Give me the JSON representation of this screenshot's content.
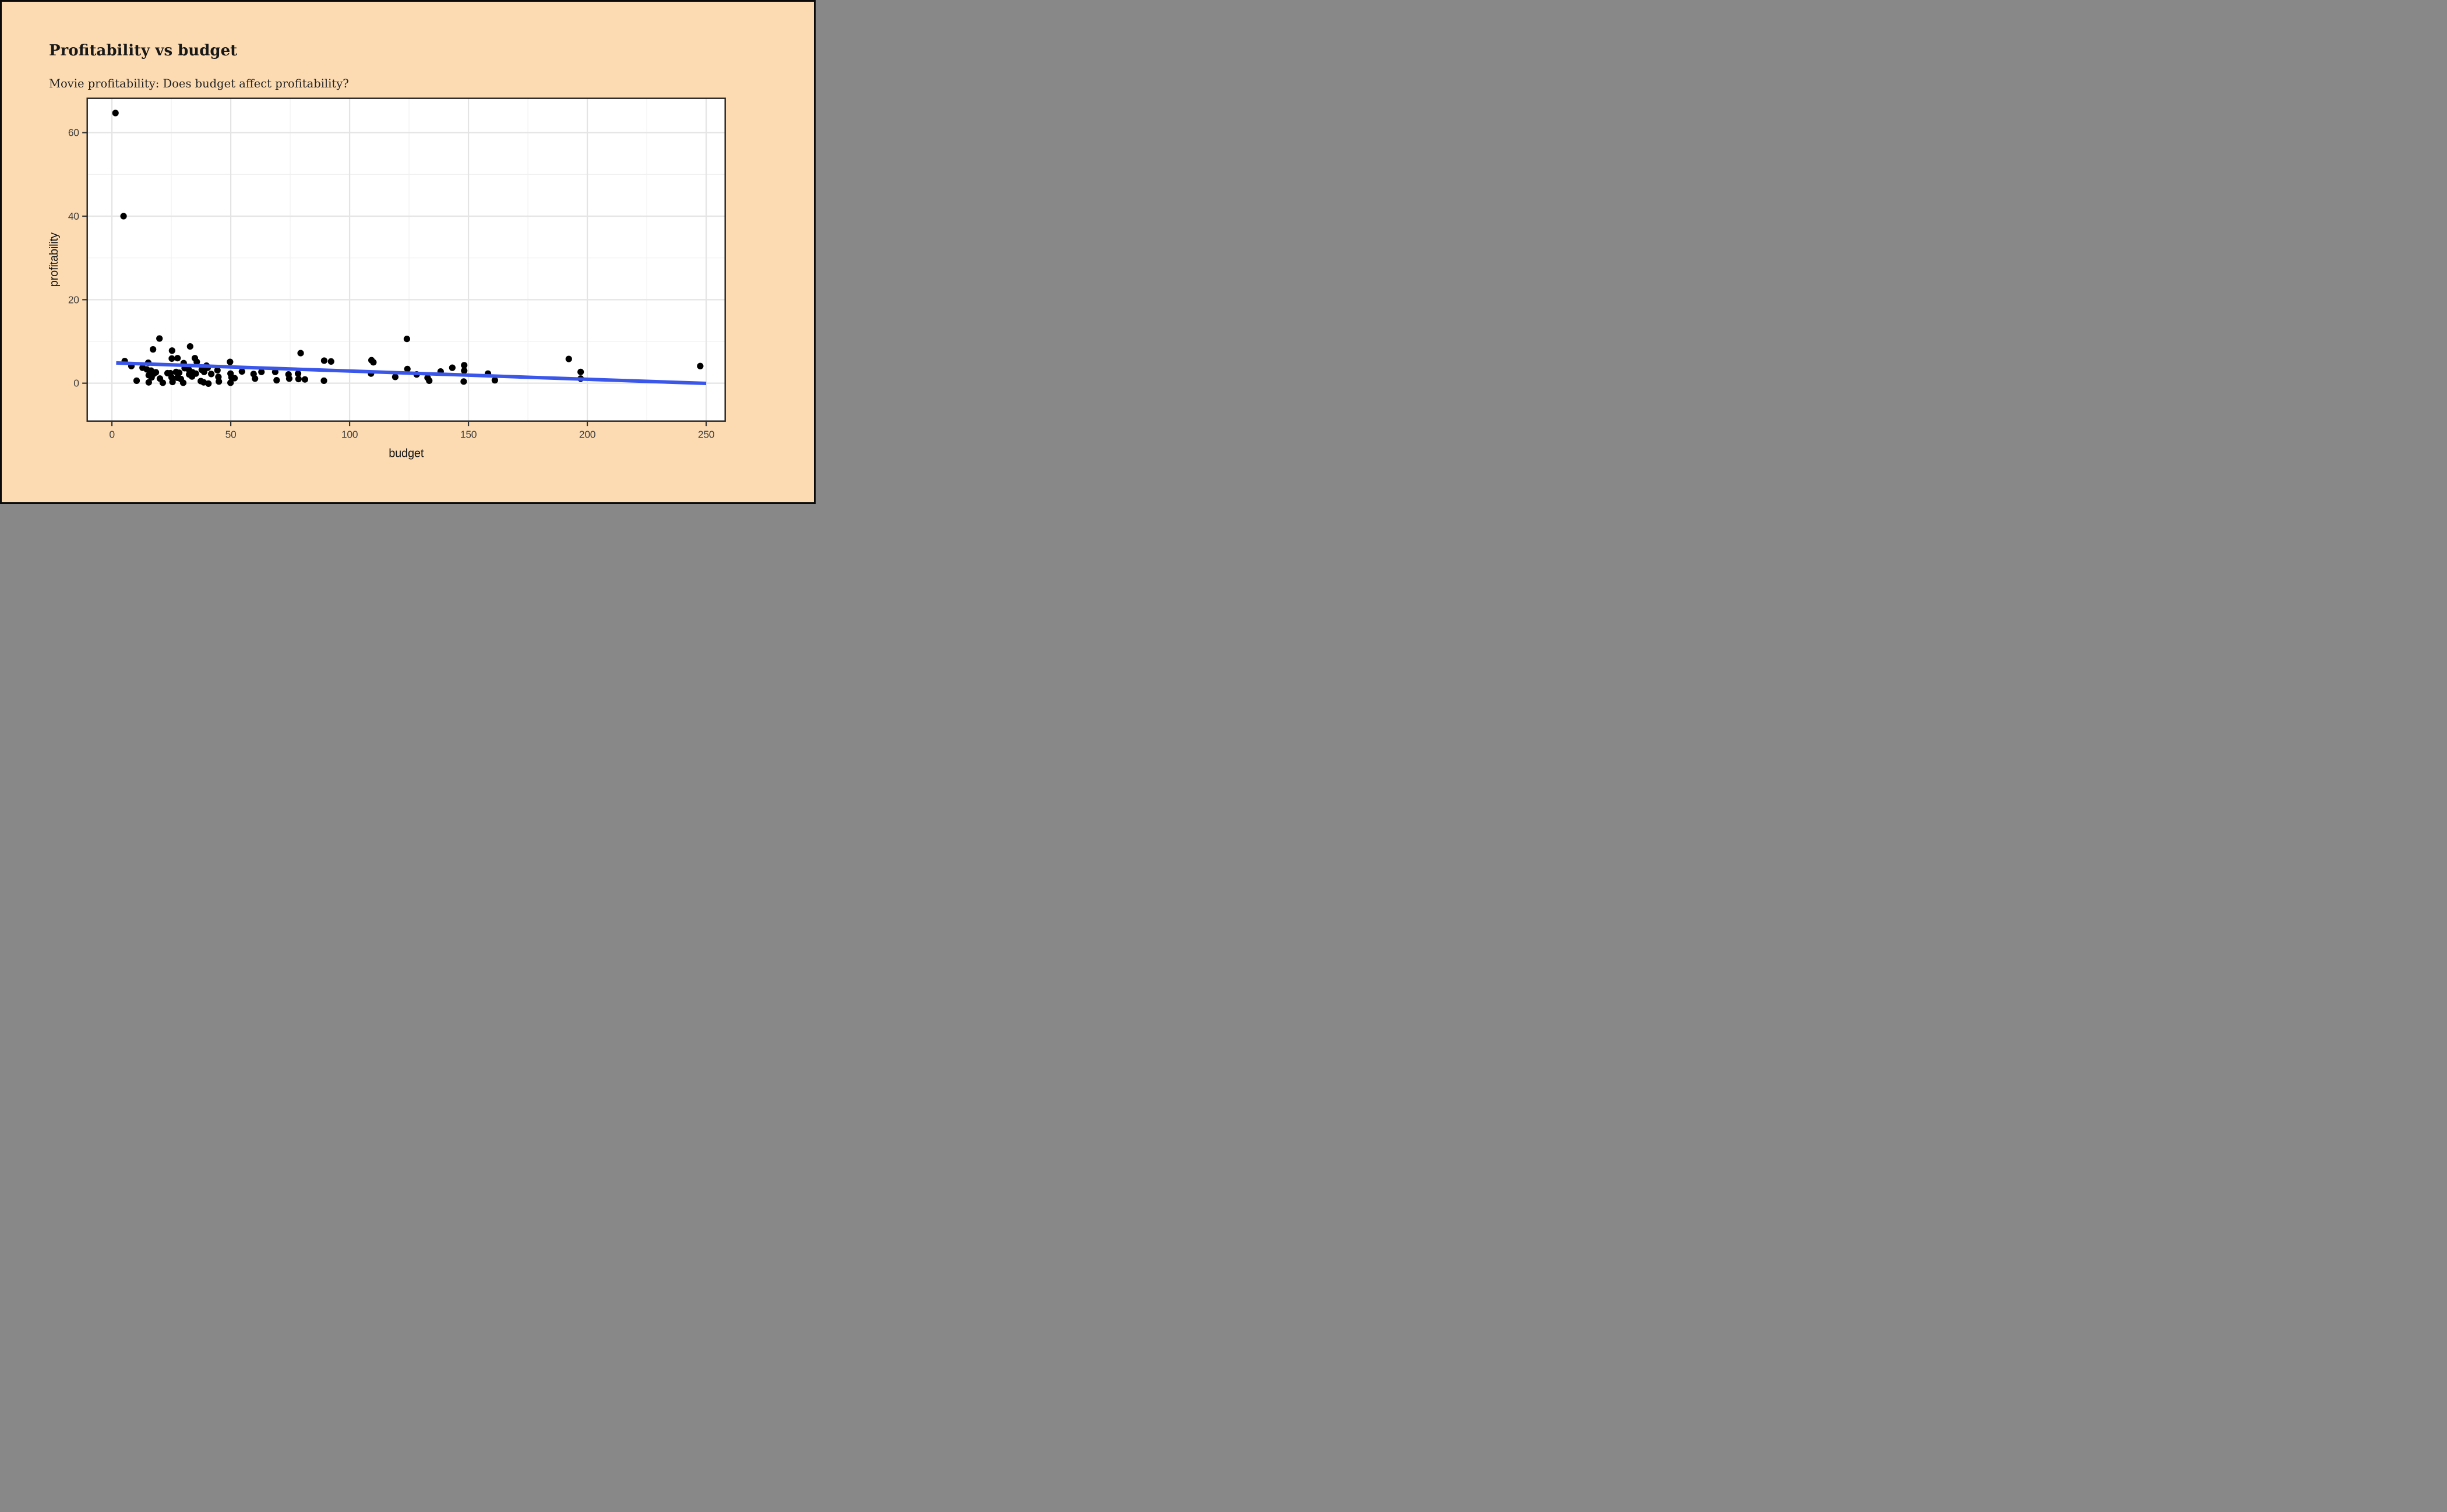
{
  "page": {
    "background": "#FCDBB2",
    "frame_color": "#0A0A0A"
  },
  "header": {
    "title": "Profitability vs budget",
    "subtitle": "Movie profitability: Does budget affect profitability?"
  },
  "chart_data": {
    "type": "scatter",
    "title": "Profitability vs budget",
    "subtitle": "Movie profitability: Does budget affect profitability?",
    "xlabel": "budget",
    "ylabel": "profitability",
    "x_ticks": [
      0,
      50,
      100,
      150,
      200,
      250
    ],
    "x_minor_ticks": [
      25,
      75,
      125,
      175,
      225
    ],
    "y_ticks": [
      0,
      20,
      40,
      60
    ],
    "y_minor_ticks": [
      10,
      30,
      50
    ],
    "xlim": [
      -10.4,
      258
    ],
    "ylim": [
      -9.1,
      68.2
    ],
    "grid": "on",
    "legend": "none",
    "colors": {
      "panel_bg": "#FFFFFF",
      "major_grid": "#E4E4E4",
      "minor_grid": "#F1F1F1",
      "panel_border": "#242424",
      "tick_mark": "#333333",
      "tick_label": "#404040",
      "point": "#000000",
      "trend_line": "#3B57EA"
    },
    "trend_line": {
      "x1": 1.8,
      "y1": 4.85,
      "x2": 250,
      "y2": -0.05
    },
    "points": [
      [
        1.5,
        64.7
      ],
      [
        4.9,
        40.0
      ],
      [
        5.4,
        5.3
      ],
      [
        8.2,
        4.1
      ],
      [
        10.4,
        0.6
      ],
      [
        12.9,
        3.7
      ],
      [
        14.7,
        3.3
      ],
      [
        15.3,
        4.9
      ],
      [
        15.5,
        1.9
      ],
      [
        15.5,
        0.2
      ],
      [
        16.5,
        3.0
      ],
      [
        16.7,
        1.4
      ],
      [
        17.3,
        8.1
      ],
      [
        17.7,
        2.3
      ],
      [
        18.5,
        2.6
      ],
      [
        20.0,
        10.7
      ],
      [
        20.2,
        1.1
      ],
      [
        21.4,
        0.1
      ],
      [
        23.4,
        2.4
      ],
      [
        24.6,
        2.4
      ],
      [
        25.1,
        1.4
      ],
      [
        25.2,
        5.9
      ],
      [
        25.3,
        7.8
      ],
      [
        25.5,
        0.3
      ],
      [
        27.0,
        2.7
      ],
      [
        27.5,
        1.3
      ],
      [
        27.6,
        6.0
      ],
      [
        28.3,
        2.5
      ],
      [
        29.0,
        1.0
      ],
      [
        30.0,
        0.1
      ],
      [
        30.2,
        4.8
      ],
      [
        30.6,
        3.6
      ],
      [
        32.3,
        3.3
      ],
      [
        32.5,
        2.1
      ],
      [
        32.9,
        8.8
      ],
      [
        33.7,
        1.6
      ],
      [
        33.9,
        2.6
      ],
      [
        34.9,
        6.0
      ],
      [
        35.3,
        2.3
      ],
      [
        35.7,
        5.1
      ],
      [
        37.4,
        0.5
      ],
      [
        37.8,
        3.2
      ],
      [
        38.6,
        0.2
      ],
      [
        38.8,
        2.7
      ],
      [
        39.8,
        4.2
      ],
      [
        40.3,
        3.7
      ],
      [
        40.6,
        -0.1
      ],
      [
        41.8,
        2.2
      ],
      [
        44.4,
        3.1
      ],
      [
        44.8,
        1.5
      ],
      [
        45.0,
        0.4
      ],
      [
        49.7,
        5.1
      ],
      [
        49.9,
        2.3
      ],
      [
        49.9,
        0.1
      ],
      [
        50.3,
        1.4
      ],
      [
        51.6,
        1.2
      ],
      [
        54.7,
        2.8
      ],
      [
        59.6,
        2.2
      ],
      [
        60.2,
        1.1
      ],
      [
        62.9,
        2.7
      ],
      [
        68.7,
        2.7
      ],
      [
        69.3,
        0.7
      ],
      [
        74.3,
        2.1
      ],
      [
        74.6,
        1.1
      ],
      [
        78.3,
        2.3
      ],
      [
        78.5,
        1.0
      ],
      [
        79.4,
        7.2
      ],
      [
        81.2,
        0.9
      ],
      [
        89.2,
        0.6
      ],
      [
        89.3,
        5.4
      ],
      [
        92.2,
        5.2
      ],
      [
        109.0,
        2.3
      ],
      [
        109.2,
        5.5
      ],
      [
        110.0,
        5.0
      ],
      [
        119.2,
        1.5
      ],
      [
        124.1,
        10.6
      ],
      [
        124.3,
        3.4
      ],
      [
        128.2,
        2.1
      ],
      [
        132.8,
        1.3
      ],
      [
        133.5,
        0.6
      ],
      [
        138.3,
        2.8
      ],
      [
        143.2,
        3.7
      ],
      [
        148.0,
        0.4
      ],
      [
        148.2,
        4.3
      ],
      [
        148.2,
        3.0
      ],
      [
        158.2,
        2.3
      ],
      [
        161.1,
        0.7
      ],
      [
        192.2,
        5.8
      ],
      [
        197.2,
        2.7
      ],
      [
        197.2,
        1.1
      ],
      [
        247.5,
        4.1
      ]
    ]
  }
}
